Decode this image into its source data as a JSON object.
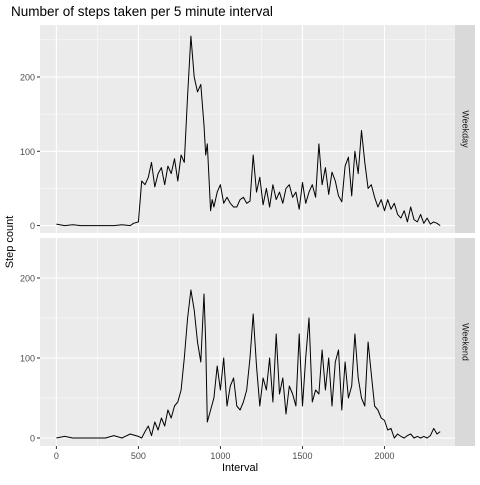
{
  "chart_data": {
    "type": "line",
    "title": "Number of steps taken per 5 minute interval",
    "xlabel": "Interval",
    "ylabel": "Step count",
    "xlim": [
      -100,
      2430
    ],
    "x_ticks": [
      0,
      500,
      1000,
      1500,
      2000
    ],
    "y_ticks": [
      0,
      100,
      200
    ],
    "grid": true,
    "panels": [
      {
        "name": "Weekday",
        "ylim": [
          -10,
          270
        ],
        "series": [
          {
            "x": [
              0,
              50,
              100,
              150,
              200,
              250,
              300,
              350,
              400,
              450,
              470,
              500,
              520,
              540,
              560,
              580,
              600,
              620,
              640,
              660,
              680,
              700,
              720,
              740,
              760,
              780,
              800,
              820,
              840,
              860,
              880,
              900,
              910,
              920,
              940,
              950,
              960,
              980,
              1000,
              1020,
              1040,
              1060,
              1080,
              1100,
              1120,
              1140,
              1160,
              1180,
              1200,
              1220,
              1240,
              1260,
              1280,
              1300,
              1320,
              1340,
              1360,
              1380,
              1400,
              1420,
              1440,
              1460,
              1480,
              1500,
              1520,
              1540,
              1560,
              1580,
              1600,
              1620,
              1640,
              1660,
              1680,
              1700,
              1720,
              1740,
              1760,
              1780,
              1800,
              1820,
              1840,
              1860,
              1880,
              1900,
              1920,
              1940,
              1960,
              1980,
              2000,
              2020,
              2040,
              2060,
              2080,
              2100,
              2120,
              2140,
              2160,
              2180,
              2200,
              2220,
              2240,
              2260,
              2280,
              2300,
              2320,
              2340
            ],
            "y": [
              2,
              0,
              1,
              0,
              0,
              0,
              0,
              0,
              1,
              0,
              3,
              5,
              60,
              55,
              65,
              85,
              52,
              70,
              78,
              55,
              80,
              70,
              90,
              60,
              95,
              85,
              175,
              255,
              200,
              180,
              190,
              135,
              95,
              110,
              20,
              35,
              25,
              45,
              55,
              30,
              38,
              30,
              25,
              25,
              35,
              38,
              30,
              33,
              95,
              45,
              65,
              28,
              50,
              25,
              55,
              35,
              45,
              30,
              50,
              55,
              38,
              45,
              22,
              58,
              30,
              45,
              55,
              38,
              110,
              55,
              78,
              42,
              72,
              60,
              40,
              32,
              80,
              92,
              40,
              100,
              70,
              128,
              85,
              50,
              55,
              38,
              25,
              35,
              20,
              35,
              22,
              30,
              15,
              10,
              20,
              5,
              25,
              8,
              5,
              15,
              3,
              10,
              2,
              5,
              3,
              0
            ]
          }
        ]
      },
      {
        "name": "Weekend",
        "ylim": [
          -10,
          250
        ],
        "series": [
          {
            "x": [
              0,
              50,
              100,
              150,
              200,
              250,
              300,
              350,
              400,
              450,
              500,
              520,
              540,
              560,
              580,
              600,
              620,
              640,
              660,
              680,
              700,
              720,
              740,
              760,
              780,
              800,
              820,
              840,
              860,
              880,
              900,
              910,
              920,
              940,
              960,
              980,
              1000,
              1020,
              1040,
              1060,
              1080,
              1100,
              1120,
              1140,
              1160,
              1180,
              1200,
              1220,
              1240,
              1260,
              1280,
              1300,
              1320,
              1340,
              1360,
              1380,
              1400,
              1420,
              1440,
              1460,
              1480,
              1500,
              1520,
              1540,
              1560,
              1580,
              1600,
              1620,
              1640,
              1660,
              1680,
              1700,
              1720,
              1740,
              1760,
              1780,
              1800,
              1820,
              1840,
              1860,
              1880,
              1900,
              1920,
              1940,
              1960,
              1980,
              2000,
              2020,
              2040,
              2060,
              2080,
              2100,
              2120,
              2140,
              2160,
              2180,
              2200,
              2220,
              2240,
              2260,
              2280,
              2300,
              2320,
              2340
            ],
            "y": [
              0,
              2,
              0,
              0,
              0,
              0,
              0,
              3,
              0,
              5,
              2,
              0,
              8,
              15,
              3,
              20,
              10,
              25,
              15,
              35,
              25,
              40,
              45,
              60,
              100,
              150,
              185,
              160,
              120,
              95,
              180,
              120,
              20,
              35,
              50,
              90,
              60,
              100,
              40,
              65,
              75,
              40,
              35,
              45,
              60,
              100,
              155,
              90,
              40,
              75,
              60,
              100,
              45,
              130,
              55,
              75,
              30,
              65,
              55,
              40,
              130,
              40,
              100,
              150,
              45,
              60,
              55,
              110,
              60,
              100,
              40,
              95,
              110,
              35,
              95,
              50,
              65,
              130,
              75,
              50,
              40,
              120,
              80,
              40,
              35,
              25,
              22,
              10,
              12,
              0,
              5,
              2,
              0,
              3,
              5,
              0,
              2,
              0,
              2,
              0,
              3,
              12,
              5,
              8
            ]
          }
        ]
      }
    ]
  }
}
